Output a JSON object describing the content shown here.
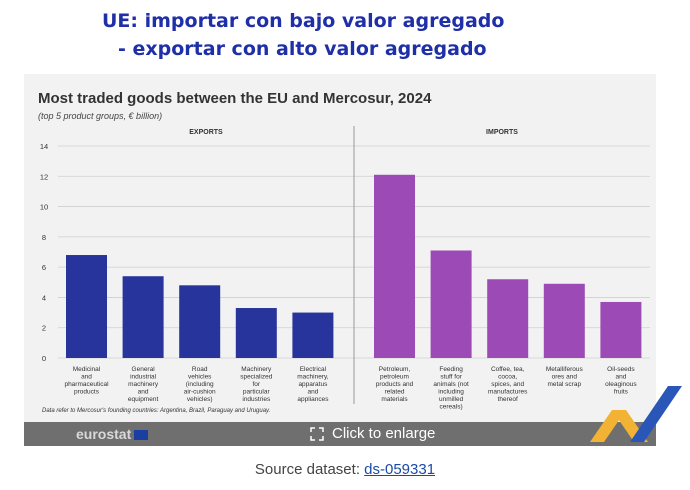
{
  "headline": {
    "line1": "UE: importar con bajo valor agregado",
    "line2": "- exportar con alto valor agregado"
  },
  "chart_data": {
    "type": "bar",
    "title": "Most traded goods between the EU and Mercosur, 2024",
    "subtitle": "(top 5 product groups, € billion)",
    "ylim": [
      0,
      14
    ],
    "yticks": [
      "0",
      "2",
      "4",
      "6",
      "8",
      "10",
      "12",
      "14"
    ],
    "grid": true,
    "groups": [
      {
        "name": "EXPORTS",
        "color": "#27349b",
        "categories": [
          "Medicinal and pharmaceutical products",
          "General industrial machinery and equipment",
          "Road vehicles (including air-cushion vehicles)",
          "Machinery specialized for particular industries",
          "Electrical machinery, apparatus and appliances"
        ],
        "values": [
          6.8,
          5.4,
          4.8,
          3.3,
          3.0
        ]
      },
      {
        "name": "IMPORTS",
        "color": "#9c4ab5",
        "categories": [
          "Petroleum, petroleum products and related materials",
          "Feeding stuff for animals (not including unmilled cereals)",
          "Coffee, tea, cocoa, spices, and manufactures thereof",
          "Metalliferous ores and metal scrap",
          "Oil-seeds and oleaginous fruits"
        ],
        "values": [
          12.1,
          7.1,
          5.2,
          4.9,
          3.7
        ]
      }
    ],
    "footnote": "Data refer to Mercosur's founding countries: Argentina, Brazil, Paraguay and Uruguay."
  },
  "branding": {
    "logo_text": "eurostat"
  },
  "enlarge": {
    "label": "Click to enlarge"
  },
  "source": {
    "prefix": "Source dataset: ",
    "link_text": "ds-059331"
  }
}
